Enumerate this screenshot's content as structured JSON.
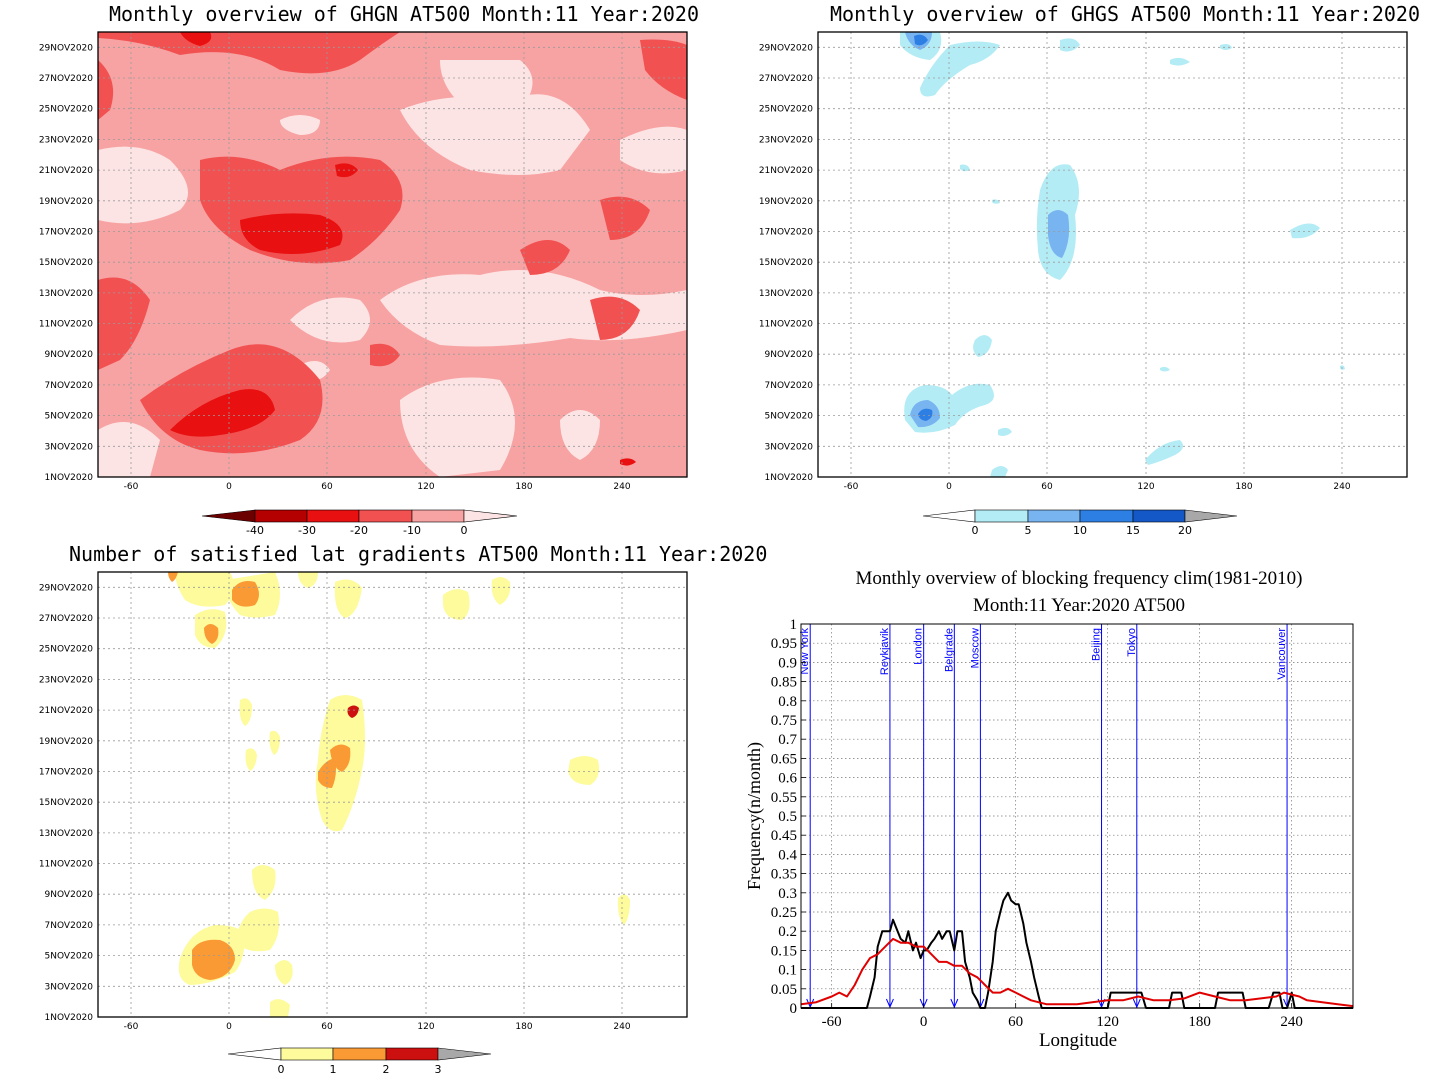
{
  "panels": {
    "ghgn": {
      "title": "Monthly overview of GHGN AT500 Month:11 Year:2020",
      "colorbar_labels": [
        "-40",
        "-30",
        "-20",
        "-10",
        "0"
      ],
      "colors": {
        "c1": "#fde4e4",
        "c2": "#f7a3a3",
        "c3": "#f25151",
        "c4": "#e81010",
        "c5": "#b40000",
        "c6": "#6a0000"
      }
    },
    "ghgs": {
      "title": "Monthly overview of GHGS AT500 Month:11 Year:2020",
      "colorbar_labels": [
        "0",
        "5",
        "10",
        "15",
        "20"
      ],
      "colors": {
        "c1": "#b4ecf6",
        "c2": "#78b4f0",
        "c3": "#2e7fe4",
        "c4": "#1458c8"
      }
    },
    "count": {
      "title": "Number of satisfied lat gradients AT500 Month:11 Year:2020",
      "colorbar_labels": [
        "0",
        "1",
        "2",
        "3"
      ],
      "colors": {
        "c1": "#fdfb9c",
        "c2": "#fa9a35",
        "c3": "#cc1010"
      }
    },
    "dates": [
      "1NOV2020",
      "3NOV2020",
      "5NOV2020",
      "7NOV2020",
      "9NOV2020",
      "11NOV2020",
      "13NOV2020",
      "15NOV2020",
      "17NOV2020",
      "19NOV2020",
      "21NOV2020",
      "23NOV2020",
      "25NOV2020",
      "27NOV2020",
      "29NOV2020"
    ],
    "lon_ticks": [
      "-60",
      "0",
      "60",
      "120",
      "180",
      "240"
    ]
  },
  "chart_data": [
    {
      "type": "line",
      "title": "Monthly overview of blocking frequency clim(1981-2010)",
      "subtitle": "Month:11 Year:2020  AT500",
      "xlabel": "Longitude",
      "ylabel": "Frequency(n/month)",
      "xlim": [
        -80,
        280
      ],
      "ylim": [
        0,
        1
      ],
      "x_ticks": [
        "-60",
        "0",
        "60",
        "120",
        "180",
        "240"
      ],
      "y_ticks": [
        "0",
        "0.05",
        "0.1",
        "0.15",
        "0.2",
        "0.25",
        "0.3",
        "0.35",
        "0.4",
        "0.45",
        "0.5",
        "0.55",
        "0.6",
        "0.65",
        "0.7",
        "0.75",
        "0.8",
        "0.85",
        "0.9",
        "0.95",
        "1"
      ],
      "grid": true,
      "colors": {
        "current": "#000000",
        "clim": "#e00000",
        "city": "#0000ff"
      },
      "cities": [
        {
          "name": "New York",
          "lon": -74
        },
        {
          "name": "Reykjavik",
          "lon": -22
        },
        {
          "name": "London",
          "lon": 0
        },
        {
          "name": "Belgrade",
          "lon": 20
        },
        {
          "name": "Moscow",
          "lon": 37
        },
        {
          "name": "Beijing",
          "lon": 116
        },
        {
          "name": "Tokyo",
          "lon": 139
        },
        {
          "name": "Vancouver",
          "lon": 237
        }
      ],
      "series": [
        {
          "x": [
            -80,
            -37,
            -35,
            -32,
            -30,
            -27,
            -25,
            -22,
            -20,
            -17,
            -15,
            -12,
            -10,
            -7,
            -5,
            -2,
            0,
            2,
            5,
            7,
            10,
            12,
            15,
            17,
            20,
            22,
            25,
            27,
            30,
            32,
            35,
            37,
            40,
            42,
            45,
            47,
            50,
            52,
            55,
            57,
            60,
            62,
            65,
            67,
            70,
            72,
            75,
            77,
            80,
            120,
            122,
            130,
            142,
            145,
            160,
            162,
            168,
            170,
            190,
            192,
            208,
            210,
            225,
            228,
            232,
            234,
            237,
            240,
            242,
            280
          ],
          "values": [
            0,
            0,
            0.03,
            0.08,
            0.16,
            0.2,
            0.2,
            0.2,
            0.23,
            0.2,
            0.18,
            0.17,
            0.2,
            0.15,
            0.17,
            0.13,
            0.15,
            0.15,
            0.17,
            0.18,
            0.2,
            0.18,
            0.2,
            0.2,
            0.15,
            0.2,
            0.2,
            0.12,
            0.08,
            0.04,
            0.02,
            0,
            0,
            0.04,
            0.12,
            0.2,
            0.25,
            0.28,
            0.3,
            0.28,
            0.27,
            0.27,
            0.22,
            0.17,
            0.12,
            0.08,
            0.03,
            0,
            0,
            0,
            0.04,
            0.04,
            0.04,
            0,
            0,
            0.04,
            0.04,
            0,
            0,
            0.04,
            0.04,
            0,
            0,
            0.04,
            0.04,
            0,
            0,
            0.04,
            0,
            0
          ]
        },
        {
          "x": [
            -80,
            -70,
            -60,
            -55,
            -50,
            -45,
            -40,
            -35,
            -30,
            -25,
            -20,
            -15,
            -10,
            -5,
            0,
            5,
            10,
            15,
            20,
            25,
            30,
            35,
            40,
            45,
            50,
            55,
            60,
            65,
            70,
            80,
            90,
            100,
            110,
            120,
            130,
            140,
            150,
            160,
            170,
            180,
            190,
            200,
            210,
            220,
            230,
            235,
            240,
            245,
            250,
            260,
            270,
            280
          ],
          "values": [
            0.01,
            0.015,
            0.03,
            0.04,
            0.03,
            0.06,
            0.1,
            0.13,
            0.14,
            0.16,
            0.18,
            0.17,
            0.17,
            0.16,
            0.16,
            0.14,
            0.12,
            0.12,
            0.11,
            0.11,
            0.09,
            0.08,
            0.06,
            0.04,
            0.04,
            0.05,
            0.04,
            0.03,
            0.02,
            0.01,
            0.01,
            0.01,
            0.015,
            0.02,
            0.02,
            0.03,
            0.02,
            0.02,
            0.025,
            0.04,
            0.03,
            0.02,
            0.02,
            0.025,
            0.03,
            0.04,
            0.035,
            0.03,
            0.02,
            0.015,
            0.01,
            0.005
          ]
        }
      ]
    }
  ]
}
